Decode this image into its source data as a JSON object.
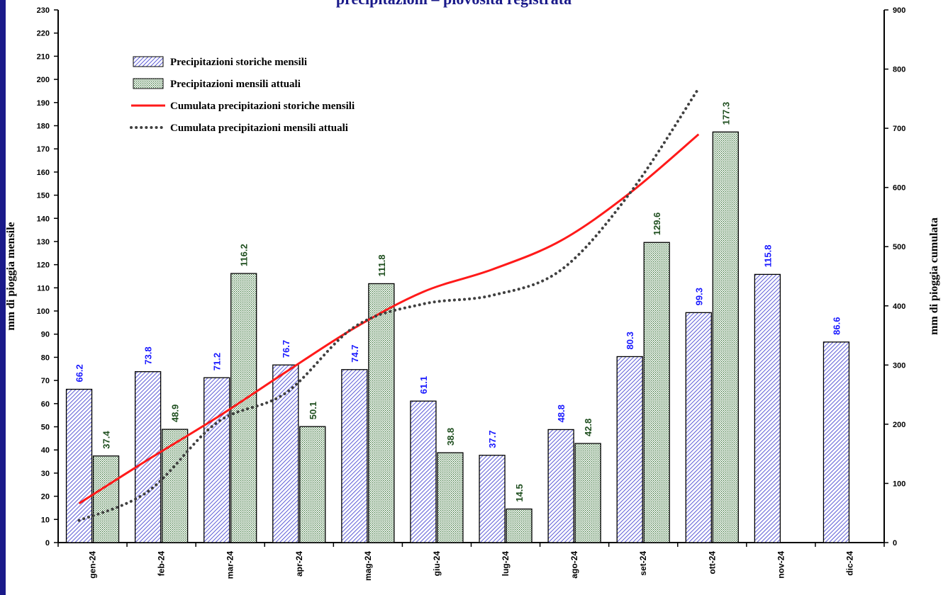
{
  "chart_data": {
    "type": "bar",
    "title": "precipitazioni – piovosità registrata",
    "categories": [
      "gen-24",
      "feb-24",
      "mar-24",
      "apr-24",
      "mag-24",
      "giu-24",
      "lug-24",
      "ago-24",
      "set-24",
      "ott-24",
      "nov-24",
      "dic-24"
    ],
    "ylabel_left": "mm di pioggia mensile",
    "ylabel_right": "mm di pioggia cumulata",
    "ylim_left": [
      0,
      230
    ],
    "ylim_right": [
      0,
      900
    ],
    "yticks_left": [
      0,
      10,
      20,
      30,
      40,
      50,
      60,
      70,
      80,
      90,
      100,
      110,
      120,
      130,
      140,
      150,
      160,
      170,
      180,
      190,
      200,
      210,
      220,
      230
    ],
    "yticks_right": [
      0,
      100,
      200,
      300,
      400,
      500,
      600,
      700,
      800,
      900
    ],
    "legend_position": "top-left",
    "series": [
      {
        "name": "Precipitazioni storiche mensili",
        "kind": "bar",
        "axis": "left",
        "color": "#3333cc",
        "label_color": "#1a1aff",
        "values": [
          66.2,
          73.8,
          71.2,
          76.7,
          74.7,
          61.1,
          37.7,
          48.8,
          80.3,
          99.3,
          115.8,
          86.6
        ],
        "labels": [
          "66.2",
          "73.8",
          "71.2",
          "76.7",
          "74.7",
          "61.1",
          "37.7",
          "48.8",
          "80.3",
          "99.3",
          "115.8",
          "86.6"
        ]
      },
      {
        "name": "Precipitazioni mensili attuali",
        "kind": "bar",
        "axis": "left",
        "color": "#2e6b2e",
        "label_color": "#1f4f1f",
        "values": [
          37.4,
          48.9,
          116.2,
          50.1,
          111.8,
          38.8,
          14.5,
          42.8,
          129.6,
          177.3,
          null,
          null
        ],
        "labels": [
          "37.4",
          "48.9",
          "116.2",
          "50.1",
          "111.8",
          "38.8",
          "14.5",
          "42.8",
          "129.6",
          "177.3",
          "",
          ""
        ]
      },
      {
        "name": "Cumulata precipitazioni storiche mensili",
        "kind": "line",
        "axis": "right",
        "color": "#ff1a1a",
        "values": [
          66.2,
          140.0,
          211.2,
          287.9,
          362.6,
          423.7,
          461.4,
          510.2,
          590.5,
          689.8,
          null,
          null
        ]
      },
      {
        "name": "Cumulata precipitazioni mensili attuali",
        "kind": "line-dotted",
        "axis": "right",
        "color": "#404040",
        "values": [
          37.4,
          86.3,
          202.5,
          252.6,
          364.4,
          403.2,
          417.7,
          460.5,
          590.1,
          767.4,
          null,
          null
        ]
      }
    ]
  }
}
